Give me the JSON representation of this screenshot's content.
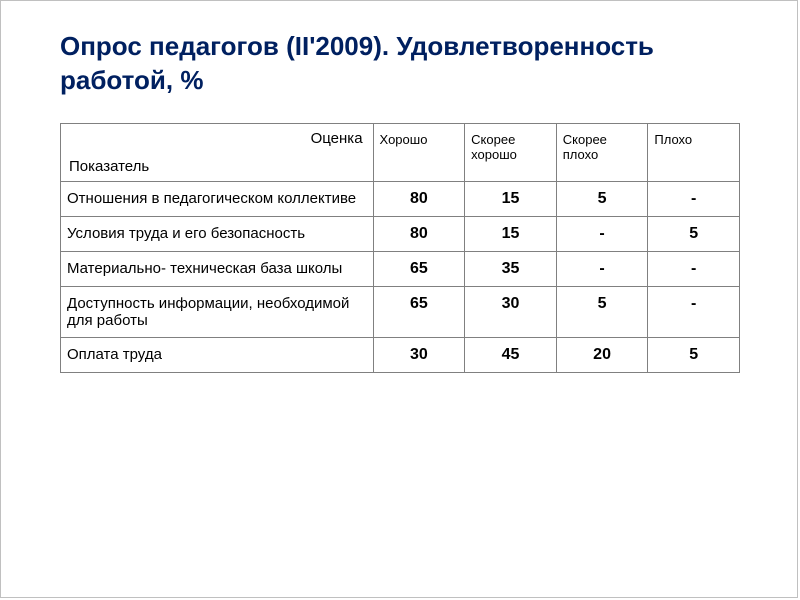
{
  "title": "Опрос педагогов (II'2009). Удовлетворенность работой, %",
  "table": {
    "corner": {
      "topRight": "Оценка",
      "bottomLeft": "Показатель"
    },
    "columns": [
      "Хорошо",
      "Скорее хорошо",
      "Скорее плохо",
      "Плохо"
    ],
    "rows": [
      {
        "label": "Отношения в педагогическом коллективе",
        "values": [
          "80",
          "15",
          "5",
          "-"
        ]
      },
      {
        "label": "Условия труда и его безопасность",
        "values": [
          "80",
          "15",
          "-",
          "5"
        ]
      },
      {
        "label": "Материально- техническая база школы",
        "values": [
          "65",
          "35",
          "-",
          "-"
        ]
      },
      {
        "label": "Доступность информации, необходимой для работы",
        "values": [
          "65",
          "30",
          "5",
          "-"
        ]
      },
      {
        "label": "Оплата труда",
        "values": [
          "30",
          "45",
          "20",
          "5"
        ]
      }
    ]
  },
  "colors": {
    "titleColor": "#002060",
    "borderColor": "#808080",
    "background": "#ffffff"
  }
}
